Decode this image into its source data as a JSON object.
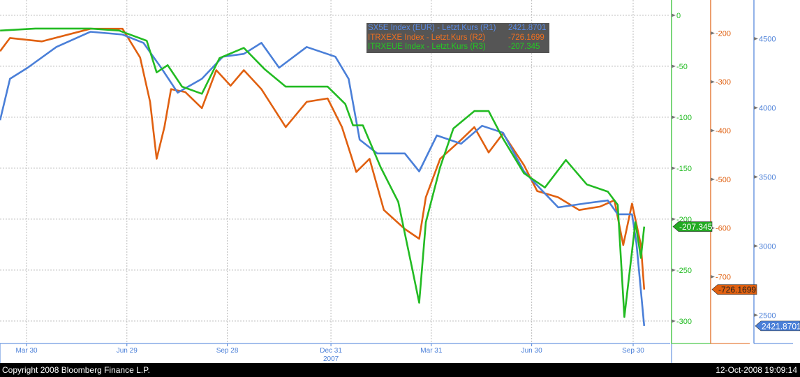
{
  "chart_data": {
    "type": "line",
    "x_ticks": [
      {
        "date": "2007-03-30",
        "label": "Mar 30"
      },
      {
        "date": "2007-06-29",
        "label": "Jun 29"
      },
      {
        "date": "2007-09-28",
        "label": "Sep 28"
      },
      {
        "date": "2007-12-31",
        "label": "Dec 31",
        "sublabel": "2007"
      },
      {
        "date": "2008-03-31",
        "label": "Mar 31"
      },
      {
        "date": "2008-06-30",
        "label": "Jun 30"
      },
      {
        "date": "2008-09-30",
        "label": "Sep 30"
      }
    ],
    "axes": {
      "R3": {
        "color": "#22bb22",
        "range": [
          -322,
          15
        ],
        "ticks": [
          0,
          -50,
          -100,
          -150,
          -200,
          -250,
          -300
        ]
      },
      "R2": {
        "color": "#e06010",
        "range": [
          -837,
          -132
        ],
        "ticks": [
          -200,
          -300,
          -400,
          -500,
          -600,
          -700
        ]
      },
      "R1": {
        "color": "#4a7fd8",
        "range": [
          2295,
          4780
        ],
        "ticks": [
          4500,
          4000,
          3500,
          3000,
          2500
        ]
      }
    },
    "series": [
      {
        "name": "SX5E Index (EUR) - Letzt.Kurs (R1)",
        "axis": "R1",
        "color": "#4a7fd8",
        "last": "2421.8701",
        "points": [
          [
            "2007-03-06",
            3910
          ],
          [
            "2007-03-15",
            4210
          ],
          [
            "2007-03-31",
            4290
          ],
          [
            "2007-04-26",
            4440
          ],
          [
            "2007-05-27",
            4550
          ],
          [
            "2007-06-25",
            4530
          ],
          [
            "2007-07-14",
            4470
          ],
          [
            "2007-07-30",
            4290
          ],
          [
            "2007-08-14",
            4110
          ],
          [
            "2007-09-05",
            4210
          ],
          [
            "2007-09-24",
            4370
          ],
          [
            "2007-10-13",
            4390
          ],
          [
            "2007-10-29",
            4470
          ],
          [
            "2007-11-14",
            4290
          ],
          [
            "2007-12-09",
            4440
          ],
          [
            "2008-01-04",
            4370
          ],
          [
            "2008-01-16",
            4210
          ],
          [
            "2008-01-26",
            3770
          ],
          [
            "2008-02-11",
            3670
          ],
          [
            "2008-03-07",
            3670
          ],
          [
            "2008-03-20",
            3540
          ],
          [
            "2008-04-05",
            3800
          ],
          [
            "2008-04-27",
            3740
          ],
          [
            "2008-05-16",
            3870
          ],
          [
            "2008-06-04",
            3820
          ],
          [
            "2008-06-23",
            3540
          ],
          [
            "2008-07-12",
            3380
          ],
          [
            "2008-07-24",
            3280
          ],
          [
            "2008-08-19",
            3310
          ],
          [
            "2008-09-07",
            3330
          ],
          [
            "2008-09-16",
            3230
          ],
          [
            "2008-09-29",
            3230
          ],
          [
            "2008-10-03",
            3020
          ],
          [
            "2008-10-10",
            2421.87
          ]
        ]
      },
      {
        "name": "ITRXEXE Index - Letzt.Kurs (R2)",
        "axis": "R2",
        "color": "#e06010",
        "last": "-726.1699",
        "points": [
          [
            "2007-03-06",
            -237
          ],
          [
            "2007-03-15",
            -210
          ],
          [
            "2007-04-13",
            -217
          ],
          [
            "2007-05-27",
            -191
          ],
          [
            "2007-06-25",
            -191
          ],
          [
            "2007-07-11",
            -250
          ],
          [
            "2007-07-20",
            -341
          ],
          [
            "2007-07-26",
            -458
          ],
          [
            "2007-08-02",
            -393
          ],
          [
            "2007-08-08",
            -315
          ],
          [
            "2007-08-21",
            -321
          ],
          [
            "2007-09-05",
            -354
          ],
          [
            "2007-09-18",
            -276
          ],
          [
            "2007-10-01",
            -308
          ],
          [
            "2007-10-13",
            -276
          ],
          [
            "2007-10-29",
            -315
          ],
          [
            "2007-11-20",
            -393
          ],
          [
            "2007-12-09",
            -341
          ],
          [
            "2007-12-28",
            -334
          ],
          [
            "2008-01-10",
            -393
          ],
          [
            "2008-01-23",
            -485
          ],
          [
            "2008-02-04",
            -458
          ],
          [
            "2008-02-17",
            -563
          ],
          [
            "2008-03-07",
            -602
          ],
          [
            "2008-03-20",
            -622
          ],
          [
            "2008-03-26",
            -537
          ],
          [
            "2008-04-08",
            -458
          ],
          [
            "2008-04-27",
            -419
          ],
          [
            "2008-05-09",
            -393
          ],
          [
            "2008-05-22",
            -445
          ],
          [
            "2008-06-04",
            -406
          ],
          [
            "2008-06-23",
            -471
          ],
          [
            "2008-07-05",
            -524
          ],
          [
            "2008-07-24",
            -537
          ],
          [
            "2008-08-12",
            -563
          ],
          [
            "2008-08-31",
            -556
          ],
          [
            "2008-09-13",
            -543
          ],
          [
            "2008-09-21",
            -635
          ],
          [
            "2008-09-29",
            -550
          ],
          [
            "2008-10-07",
            -635
          ],
          [
            "2008-10-10",
            -726.17
          ]
        ]
      },
      {
        "name": "ITRXEUE Index - Letzt.Kurs (R3)",
        "axis": "R3",
        "color": "#22bb22",
        "last": "-207.345",
        "points": [
          [
            "2007-03-06",
            -15
          ],
          [
            "2007-04-07",
            -13
          ],
          [
            "2007-05-27",
            -13
          ],
          [
            "2007-06-22",
            -15
          ],
          [
            "2007-07-17",
            -25
          ],
          [
            "2007-07-26",
            -56
          ],
          [
            "2007-08-05",
            -49
          ],
          [
            "2007-08-18",
            -70
          ],
          [
            "2007-09-05",
            -77
          ],
          [
            "2007-09-21",
            -42
          ],
          [
            "2007-10-13",
            -32
          ],
          [
            "2007-11-01",
            -53
          ],
          [
            "2007-11-20",
            -70
          ],
          [
            "2007-12-09",
            -70
          ],
          [
            "2007-12-28",
            -70
          ],
          [
            "2008-01-13",
            -87
          ],
          [
            "2008-01-20",
            -108
          ],
          [
            "2008-01-29",
            -108
          ],
          [
            "2008-02-14",
            -149
          ],
          [
            "2008-03-01",
            -183
          ],
          [
            "2008-03-13",
            -245
          ],
          [
            "2008-03-20",
            -282
          ],
          [
            "2008-03-26",
            -203
          ],
          [
            "2008-04-08",
            -149
          ],
          [
            "2008-04-20",
            -111
          ],
          [
            "2008-05-09",
            -94
          ],
          [
            "2008-05-22",
            -94
          ],
          [
            "2008-06-04",
            -121
          ],
          [
            "2008-06-23",
            -155
          ],
          [
            "2008-07-12",
            -169
          ],
          [
            "2008-07-31",
            -142
          ],
          [
            "2008-08-19",
            -166
          ],
          [
            "2008-09-07",
            -173
          ],
          [
            "2008-09-16",
            -186
          ],
          [
            "2008-09-22",
            -296
          ],
          [
            "2008-10-02",
            -203
          ],
          [
            "2008-10-07",
            -238
          ],
          [
            "2008-10-10",
            -207.345
          ]
        ]
      }
    ],
    "grid": true,
    "legend_placement": "top-center"
  },
  "legend": {
    "rows": [
      {
        "name": "SX5E Index (EUR) - Letzt.Kurs (R1)",
        "value": "2421.8701",
        "color": "#5b8de8"
      },
      {
        "name": "ITRXEXE Index - Letzt.Kurs (R2)",
        "value": "-726.1699",
        "color": "#f07020"
      },
      {
        "name": "ITRXEUE Index - Letzt.Kurs (R3)",
        "value": "-207.345",
        "color": "#22cc22"
      }
    ]
  },
  "footer": {
    "copyright": "Copyright 2008 Bloomberg Finance L.P.",
    "timestamp": "12-Oct-2008 19:09:14"
  }
}
